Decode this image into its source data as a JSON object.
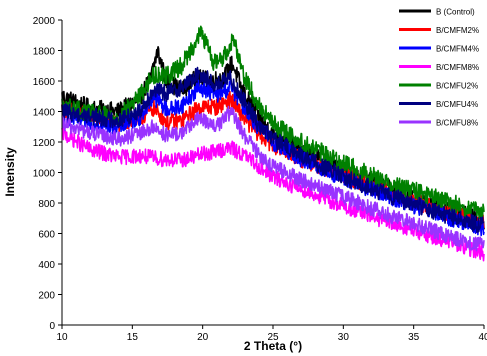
{
  "chart_data": {
    "type": "line",
    "title": "",
    "xlabel": "2 Theta (°)",
    "ylabel": "Intensity",
    "xlim": [
      10,
      40
    ],
    "ylim": [
      0,
      2000
    ],
    "xticks": [
      10,
      15,
      20,
      25,
      30,
      35,
      40
    ],
    "yticks": [
      0,
      200,
      400,
      600,
      800,
      1000,
      1200,
      1400,
      1600,
      1800,
      2000
    ],
    "grid": false,
    "legend": "top-right",
    "series": [
      {
        "name": "B (Control)",
        "color": "#000000",
        "x": [
          10,
          12,
          14,
          15.5,
          16.3,
          16.8,
          17.4,
          18.5,
          19.6,
          20.5,
          21.5,
          22.1,
          22.8,
          24,
          25,
          27,
          30,
          33,
          36,
          38,
          40
        ],
        "y": [
          1500,
          1420,
          1400,
          1480,
          1620,
          1800,
          1600,
          1540,
          1620,
          1600,
          1620,
          1720,
          1540,
          1360,
          1250,
          1150,
          1000,
          900,
          800,
          740,
          680
        ],
        "noise": 60
      },
      {
        "name": "B/CMFM2%",
        "color": "#ff0000",
        "x": [
          10,
          12,
          14,
          15.5,
          16.5,
          17.5,
          18.5,
          19.8,
          21,
          22,
          23,
          24,
          25,
          27,
          30,
          33,
          36,
          38,
          40
        ],
        "y": [
          1420,
          1370,
          1320,
          1350,
          1420,
          1330,
          1340,
          1430,
          1430,
          1480,
          1350,
          1250,
          1180,
          1090,
          980,
          880,
          780,
          720,
          670
        ],
        "noise": 55
      },
      {
        "name": "B/CMFM4%",
        "color": "#0000ff",
        "x": [
          10,
          12,
          14,
          15.5,
          16.5,
          17.5,
          18.5,
          19.8,
          21,
          22,
          23,
          24,
          25,
          27,
          30,
          33,
          36,
          38,
          40
        ],
        "y": [
          1370,
          1330,
          1300,
          1360,
          1500,
          1410,
          1440,
          1560,
          1510,
          1560,
          1420,
          1290,
          1200,
          1090,
          960,
          850,
          750,
          690,
          630
        ],
        "noise": 55
      },
      {
        "name": "B/CMFM8%",
        "color": "#ff00ff",
        "x": [
          10,
          12,
          14,
          15.5,
          17,
          18.5,
          20,
          21,
          22,
          23,
          24,
          25,
          27,
          30,
          33,
          36,
          38,
          40
        ],
        "y": [
          1260,
          1150,
          1100,
          1110,
          1090,
          1080,
          1120,
          1140,
          1160,
          1110,
          1040,
          970,
          890,
          780,
          680,
          590,
          530,
          470
        ],
        "noise": 50
      },
      {
        "name": "B/CMFU2%",
        "color": "#008000",
        "x": [
          10,
          12,
          14,
          15.5,
          16.5,
          17.5,
          18.5,
          19.9,
          20.8,
          21.5,
          22.2,
          23,
          24,
          25,
          27,
          30,
          33,
          36,
          38,
          40
        ],
        "y": [
          1440,
          1390,
          1360,
          1500,
          1640,
          1640,
          1700,
          1920,
          1720,
          1760,
          1880,
          1620,
          1440,
          1320,
          1200,
          1060,
          940,
          850,
          790,
          730
        ],
        "noise": 60
      },
      {
        "name": "B/CMFU4%",
        "color": "#000080",
        "x": [
          10,
          12,
          14,
          15.5,
          16.5,
          17.5,
          18.5,
          19.8,
          21,
          22,
          23,
          24,
          25,
          27,
          30,
          33,
          36,
          38,
          40
        ],
        "y": [
          1400,
          1370,
          1340,
          1400,
          1540,
          1520,
          1560,
          1650,
          1570,
          1620,
          1460,
          1310,
          1220,
          1110,
          970,
          860,
          760,
          700,
          650
        ],
        "noise": 55
      },
      {
        "name": "B/CMFU8%",
        "color": "#9933ff",
        "x": [
          10,
          12,
          14,
          15.5,
          16.5,
          17.5,
          18.5,
          19.8,
          21,
          22,
          23,
          24,
          25,
          27,
          30,
          33,
          36,
          38,
          40
        ],
        "y": [
          1320,
          1260,
          1220,
          1250,
          1300,
          1240,
          1260,
          1360,
          1300,
          1400,
          1240,
          1120,
          1040,
          950,
          840,
          730,
          630,
          570,
          520
        ],
        "noise": 50
      }
    ]
  }
}
